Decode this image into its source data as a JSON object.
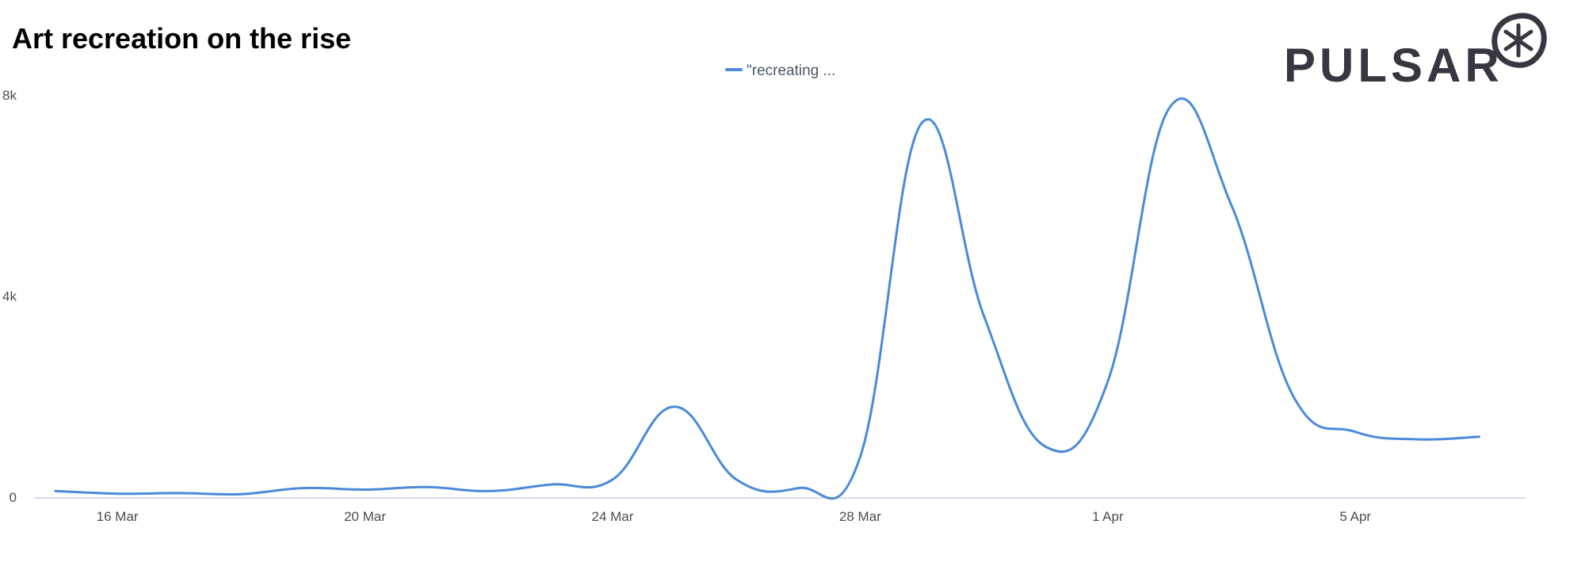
{
  "title": "Art recreation on the rise",
  "logo": {
    "text": "PULSAR",
    "icon": "asterisk-circle-logo"
  },
  "colors": {
    "series": "#4a8ad8",
    "axis": "#c6d4e6",
    "logo": "#363741"
  },
  "chart_data": {
    "type": "line",
    "title": "Art recreation on the rise",
    "legend": {
      "placement": "top-center",
      "entries": [
        "\"recreating ..."
      ]
    },
    "x_ticks": [
      "16 Mar",
      "20 Mar",
      "24 Mar",
      "28 Mar",
      "1 Apr",
      "5 Apr"
    ],
    "y_ticks": [
      "0",
      "4k",
      "8k"
    ],
    "ylim": [
      0,
      8000
    ],
    "xlim": [
      "2020-03-14T16:00",
      "2020-04-07T18:00"
    ],
    "grid": false,
    "series": [
      {
        "name": "\"recreating ...",
        "points": [
          [
            "2020-03-15",
            120
          ],
          [
            "2020-03-16",
            70
          ],
          [
            "2020-03-17",
            80
          ],
          [
            "2020-03-18",
            60
          ],
          [
            "2020-03-19",
            180
          ],
          [
            "2020-03-20",
            150
          ],
          [
            "2020-03-21",
            200
          ],
          [
            "2020-03-22",
            120
          ],
          [
            "2020-03-23",
            250
          ],
          [
            "2020-03-24",
            350
          ],
          [
            "2020-03-25",
            1800
          ],
          [
            "2020-03-26",
            350
          ],
          [
            "2020-03-27",
            180
          ],
          [
            "2020-03-28",
            800
          ],
          [
            "2020-03-29",
            7450
          ],
          [
            "2020-03-30",
            3600
          ],
          [
            "2020-03-31",
            1000
          ],
          [
            "2020-04-01",
            2300
          ],
          [
            "2020-04-02",
            7750
          ],
          [
            "2020-04-03",
            5800
          ],
          [
            "2020-04-04",
            2000
          ],
          [
            "2020-04-05",
            1300
          ],
          [
            "2020-04-06",
            1150
          ],
          [
            "2020-04-07",
            1200
          ]
        ]
      }
    ]
  }
}
